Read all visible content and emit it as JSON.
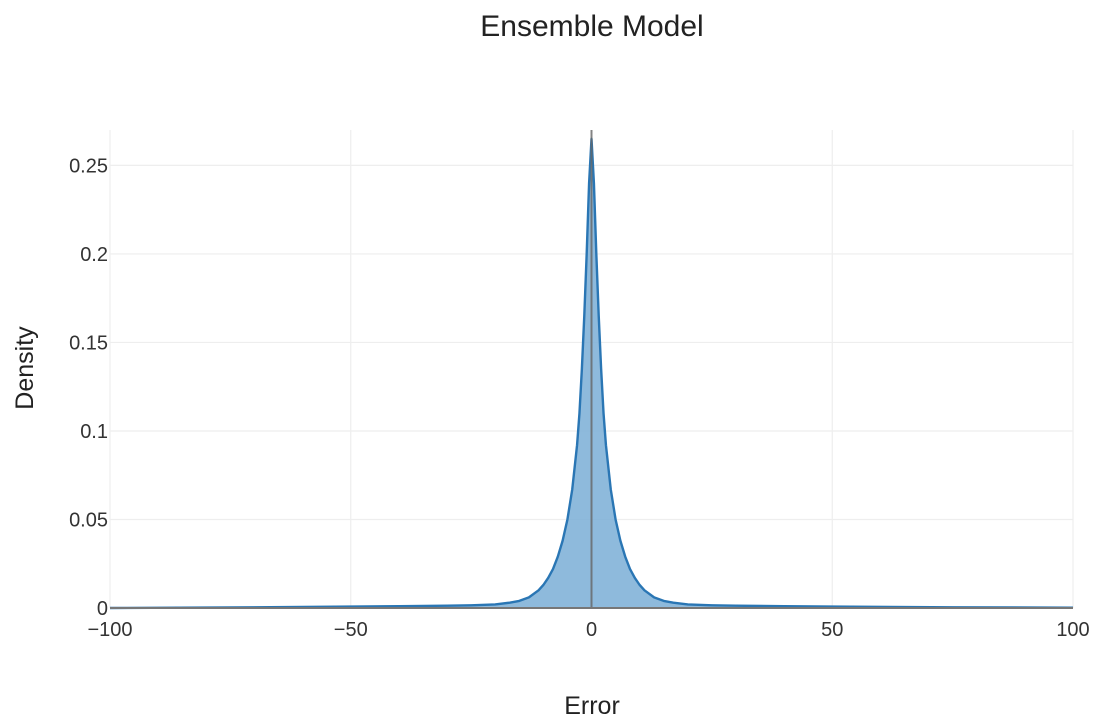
{
  "chart_data": {
    "type": "area",
    "title": "Ensemble Model",
    "xlabel": "Error",
    "ylabel": "Density",
    "xlim": [
      -100,
      100
    ],
    "ylim": [
      0,
      0.27
    ],
    "xticks": [
      -100,
      -50,
      0,
      50,
      100
    ],
    "xtick_labels": [
      "−100",
      "−50",
      "0",
      "50",
      "100"
    ],
    "yticks": [
      0,
      0.05,
      0.1,
      0.15,
      0.2,
      0.25
    ],
    "ytick_labels": [
      "0",
      "0.05",
      "0.1",
      "0.15",
      "0.2",
      "0.25"
    ],
    "grid": true,
    "legend": "none",
    "series": [
      {
        "x": [
          -100,
          -75,
          -50,
          -40,
          -30,
          -25,
          -20,
          -17,
          -15,
          -13,
          -11,
          -10,
          -9,
          -8,
          -7,
          -6,
          -5,
          -4,
          -3,
          -2.5,
          -2,
          -1.5,
          -1,
          -0.5,
          0,
          0.5,
          1,
          1.5,
          2,
          2.5,
          3,
          4,
          5,
          6,
          7,
          8,
          9,
          10,
          11,
          13,
          15,
          17,
          20,
          25,
          30,
          40,
          50,
          75,
          100
        ],
        "y": [
          0.0,
          0.0003,
          0.0008,
          0.001,
          0.0013,
          0.0015,
          0.002,
          0.003,
          0.004,
          0.006,
          0.01,
          0.013,
          0.017,
          0.022,
          0.029,
          0.038,
          0.05,
          0.067,
          0.092,
          0.11,
          0.135,
          0.165,
          0.2,
          0.24,
          0.265,
          0.24,
          0.2,
          0.165,
          0.135,
          0.11,
          0.092,
          0.067,
          0.05,
          0.038,
          0.029,
          0.022,
          0.017,
          0.013,
          0.01,
          0.006,
          0.004,
          0.003,
          0.002,
          0.0015,
          0.0013,
          0.001,
          0.0008,
          0.0004,
          0.0002
        ]
      }
    ],
    "colors": {
      "line": "#2a76b4",
      "fill": "#7aaed6",
      "zero_line": "#666666"
    }
  }
}
